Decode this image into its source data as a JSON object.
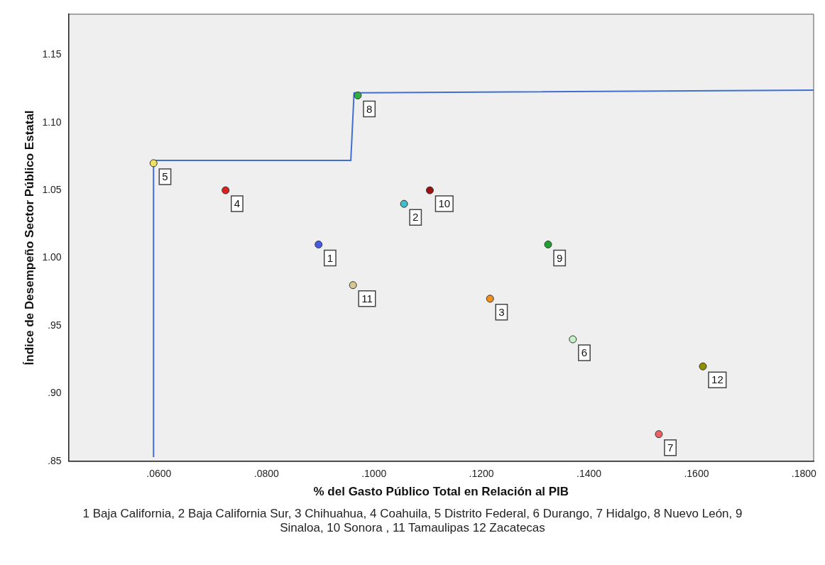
{
  "chart_data": {
    "type": "scatter",
    "xlabel": "% del Gasto Público Total en Relación al PIB",
    "ylabel": "Índice de Desempeño Sector Público Estatal",
    "xlim": [
      0.0432,
      0.1818
    ],
    "xticks": [
      {
        "value": 0.06,
        "label": ".0600"
      },
      {
        "value": 0.08,
        "label": ".0800"
      },
      {
        "value": 0.1,
        "label": ".1000"
      },
      {
        "value": 0.12,
        "label": ".1200"
      },
      {
        "value": 0.14,
        "label": ".1400"
      },
      {
        "value": 0.16,
        "label": ".1600"
      },
      {
        "value": 0.18,
        "label": ".1800"
      }
    ],
    "ylim": [
      0.85,
      1.18
    ],
    "yticks": [
      {
        "value": 0.85,
        "label": ".85"
      },
      {
        "value": 0.9,
        "label": ".90"
      },
      {
        "value": 0.95,
        "label": ".95"
      },
      {
        "value": 1.0,
        "label": "1.00"
      },
      {
        "value": 1.05,
        "label": "1.05"
      },
      {
        "value": 1.1,
        "label": "1.10"
      },
      {
        "value": 1.15,
        "label": "1.15"
      }
    ],
    "series": [
      {
        "marker": "circle",
        "x": [
          0.0897,
          0.1056,
          0.1216,
          0.0724,
          0.059,
          0.137,
          0.153,
          0.097,
          0.1324,
          0.1104,
          0.0961,
          0.1612
        ],
        "values": [
          1.01,
          1.04,
          0.97,
          1.05,
          1.07,
          0.94,
          0.87,
          1.12,
          1.01,
          1.05,
          0.98,
          0.92
        ],
        "colors": [
          "#4a5ae0",
          "#40c0c8",
          "#f09020",
          "#e02020",
          "#f0e060",
          "#c8f0c8",
          "#f06060",
          "#30b040",
          "#20a030",
          "#a01010",
          "#d8c890",
          "#909000"
        ]
      },
      {
        "type": "line",
        "marker": "none",
        "color": "#3f6fd0",
        "x": [
          0.059,
          0.059,
          0.0957,
          0.0963,
          0.1818
        ],
        "values": [
          0.853,
          1.072,
          1.072,
          1.122,
          1.124
        ]
      }
    ],
    "grid": false,
    "legend": false,
    "annotations": [
      {
        "text": "1",
        "x": 0.0897,
        "y": 1.01
      },
      {
        "text": "2",
        "x": 0.1056,
        "y": 1.04
      },
      {
        "text": "3",
        "x": 0.1216,
        "y": 0.97
      },
      {
        "text": "4",
        "x": 0.0724,
        "y": 1.05
      },
      {
        "text": "5",
        "x": 0.059,
        "y": 1.07
      },
      {
        "text": "6",
        "x": 0.137,
        "y": 0.94
      },
      {
        "text": "7",
        "x": 0.153,
        "y": 0.87
      },
      {
        "text": "8",
        "x": 0.097,
        "y": 1.12
      },
      {
        "text": "9",
        "x": 0.1324,
        "y": 1.01
      },
      {
        "text": "10",
        "x": 0.1104,
        "y": 1.05
      },
      {
        "text": "11",
        "x": 0.0961,
        "y": 0.98
      },
      {
        "text": "12",
        "x": 0.1612,
        "y": 0.92
      },
      "1 Baja California, 2 Baja California Sur, 3 Chihuahua, 4 Coahuila, 5 Distrito Federal, 6 Durango, 7 Hidalgo, 8 Nuevo León, 9 Sinaloa, 10 Sonora , 11 Tamaulipas 12 Zacatecas"
    ]
  }
}
